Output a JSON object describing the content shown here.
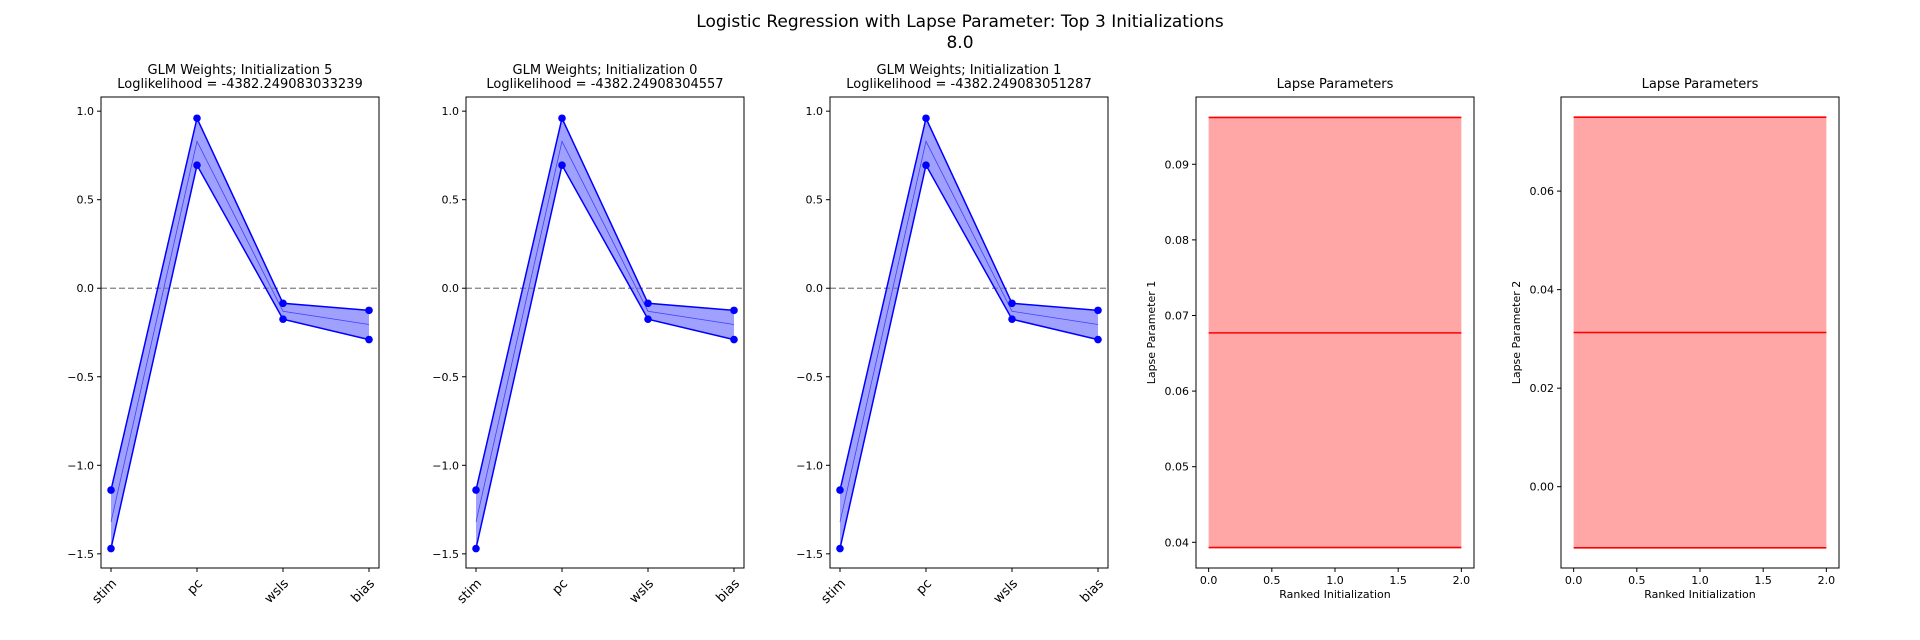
{
  "figure": {
    "title_line1": "Logistic Regression with Lapse Parameter: Top 3 Initializations",
    "title_line2": "8.0"
  },
  "colors": {
    "weights_line": "#0000ff",
    "weights_fill": "#8080ff",
    "lapse_line": "#ff0000",
    "lapse_fill": "#ffa6a6",
    "zero_line": "#808080"
  },
  "chart_data": [
    {
      "type": "line",
      "title_line1": "GLM Weights; Initialization 5",
      "title_line2": "Loglikelihood = -4382.249083033239",
      "categories": [
        "stim",
        "pc",
        "wsls",
        "bias"
      ],
      "series": [
        {
          "values": [
            -1.14,
            0.96,
            -0.085,
            -0.125
          ]
        },
        {
          "values": [
            -1.47,
            0.695,
            -0.175,
            -0.29
          ]
        },
        {
          "values": [
            -1.32,
            0.83,
            -0.13,
            -0.205
          ]
        }
      ],
      "ylim": [
        -1.58,
        1.08
      ],
      "yticks": [
        -1.5,
        -1.0,
        -0.5,
        0.0,
        0.5,
        1.0
      ],
      "ytick_labels": [
        "−1.5",
        "−1.0",
        "−0.5",
        "0.0",
        "0.5",
        "1.0"
      ],
      "hline": 0.0,
      "grid": false
    },
    {
      "type": "line",
      "title_line1": "GLM Weights; Initialization 0",
      "title_line2": "Loglikelihood = -4382.24908304557",
      "categories": [
        "stim",
        "pc",
        "wsls",
        "bias"
      ],
      "series": [
        {
          "values": [
            -1.14,
            0.96,
            -0.085,
            -0.125
          ]
        },
        {
          "values": [
            -1.47,
            0.695,
            -0.175,
            -0.29
          ]
        },
        {
          "values": [
            -1.32,
            0.83,
            -0.13,
            -0.205
          ]
        }
      ],
      "ylim": [
        -1.58,
        1.08
      ],
      "yticks": [
        -1.5,
        -1.0,
        -0.5,
        0.0,
        0.5,
        1.0
      ],
      "ytick_labels": [
        "−1.5",
        "−1.0",
        "−0.5",
        "0.0",
        "0.5",
        "1.0"
      ],
      "hline": 0.0,
      "grid": false
    },
    {
      "type": "line",
      "title_line1": "GLM Weights; Initialization 1",
      "title_line2": "Loglikelihood = -4382.249083051287",
      "categories": [
        "stim",
        "pc",
        "wsls",
        "bias"
      ],
      "series": [
        {
          "values": [
            -1.14,
            0.96,
            -0.085,
            -0.125
          ]
        },
        {
          "values": [
            -1.47,
            0.695,
            -0.175,
            -0.29
          ]
        },
        {
          "values": [
            -1.32,
            0.83,
            -0.13,
            -0.205
          ]
        }
      ],
      "ylim": [
        -1.58,
        1.08
      ],
      "yticks": [
        -1.5,
        -1.0,
        -0.5,
        0.0,
        0.5,
        1.0
      ],
      "ytick_labels": [
        "−1.5",
        "−1.0",
        "−0.5",
        "0.0",
        "0.5",
        "1.0"
      ],
      "hline": 0.0,
      "grid": false
    },
    {
      "type": "area",
      "title": "Lapse Parameters",
      "xlabel": "Ranked Initialization",
      "ylabel": "Lapse Parameter 1",
      "x": [
        0,
        2
      ],
      "upper": 0.0962,
      "median": 0.0677,
      "lower": 0.0393,
      "xlim": [
        -0.1,
        2.1
      ],
      "ylim": [
        0.0366,
        0.0989
      ],
      "xticks": [
        0.0,
        0.5,
        1.0,
        1.5,
        2.0
      ],
      "xtick_labels": [
        "0.0",
        "0.5",
        "1.0",
        "1.5",
        "2.0"
      ],
      "yticks": [
        0.04,
        0.05,
        0.06,
        0.07,
        0.08,
        0.09
      ],
      "ytick_labels": [
        "0.04",
        "0.05",
        "0.06",
        "0.07",
        "0.08",
        "0.09"
      ],
      "grid": false
    },
    {
      "type": "area",
      "title": "Lapse Parameters",
      "xlabel": "Ranked Initialization",
      "ylabel": "Lapse Parameter 2",
      "x": [
        0,
        2
      ],
      "upper": 0.075,
      "median": 0.0313,
      "lower": -0.0124,
      "xlim": [
        -0.1,
        2.1
      ],
      "ylim": [
        -0.0165,
        0.0791
      ],
      "xticks": [
        0.0,
        0.5,
        1.0,
        1.5,
        2.0
      ],
      "xtick_labels": [
        "0.0",
        "0.5",
        "1.0",
        "1.5",
        "2.0"
      ],
      "yticks": [
        0.0,
        0.02,
        0.04,
        0.06
      ],
      "ytick_labels": [
        "0.00",
        "0.02",
        "0.04",
        "0.06"
      ],
      "grid": false
    }
  ]
}
